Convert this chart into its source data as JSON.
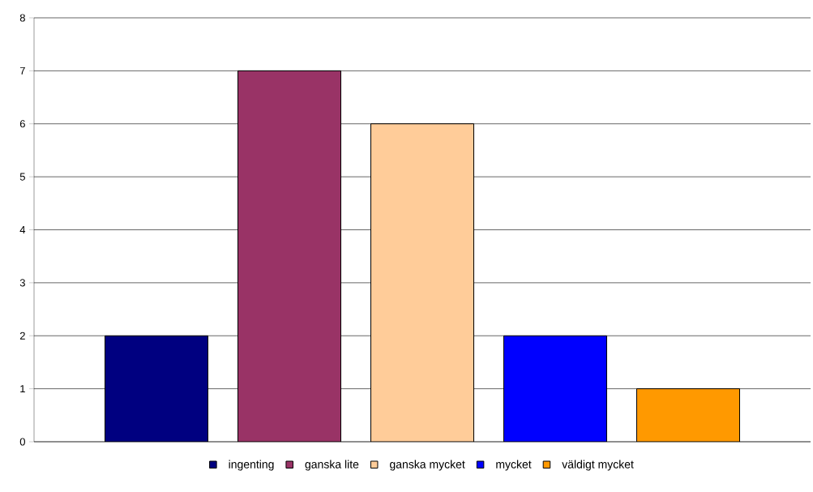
{
  "chart_data": {
    "type": "bar",
    "categories": [
      null
    ],
    "series": [
      {
        "name": "ingenting",
        "color": "#000080",
        "values": [
          2
        ]
      },
      {
        "name": "ganska  lite",
        "color": "#993366",
        "values": [
          7
        ]
      },
      {
        "name": "ganska  mycket",
        "color": "#ffcc99",
        "values": [
          6
        ]
      },
      {
        "name": "mycket",
        "color": "#0000ff",
        "values": [
          2
        ]
      },
      {
        "name": "väldigt  mycket",
        "color": "#ff9900",
        "values": [
          1
        ]
      }
    ],
    "ylim": [
      0,
      8
    ],
    "yticks": [
      0,
      1,
      2,
      3,
      4,
      5,
      6,
      7,
      8
    ],
    "grid": "y",
    "legend": "bottom"
  }
}
